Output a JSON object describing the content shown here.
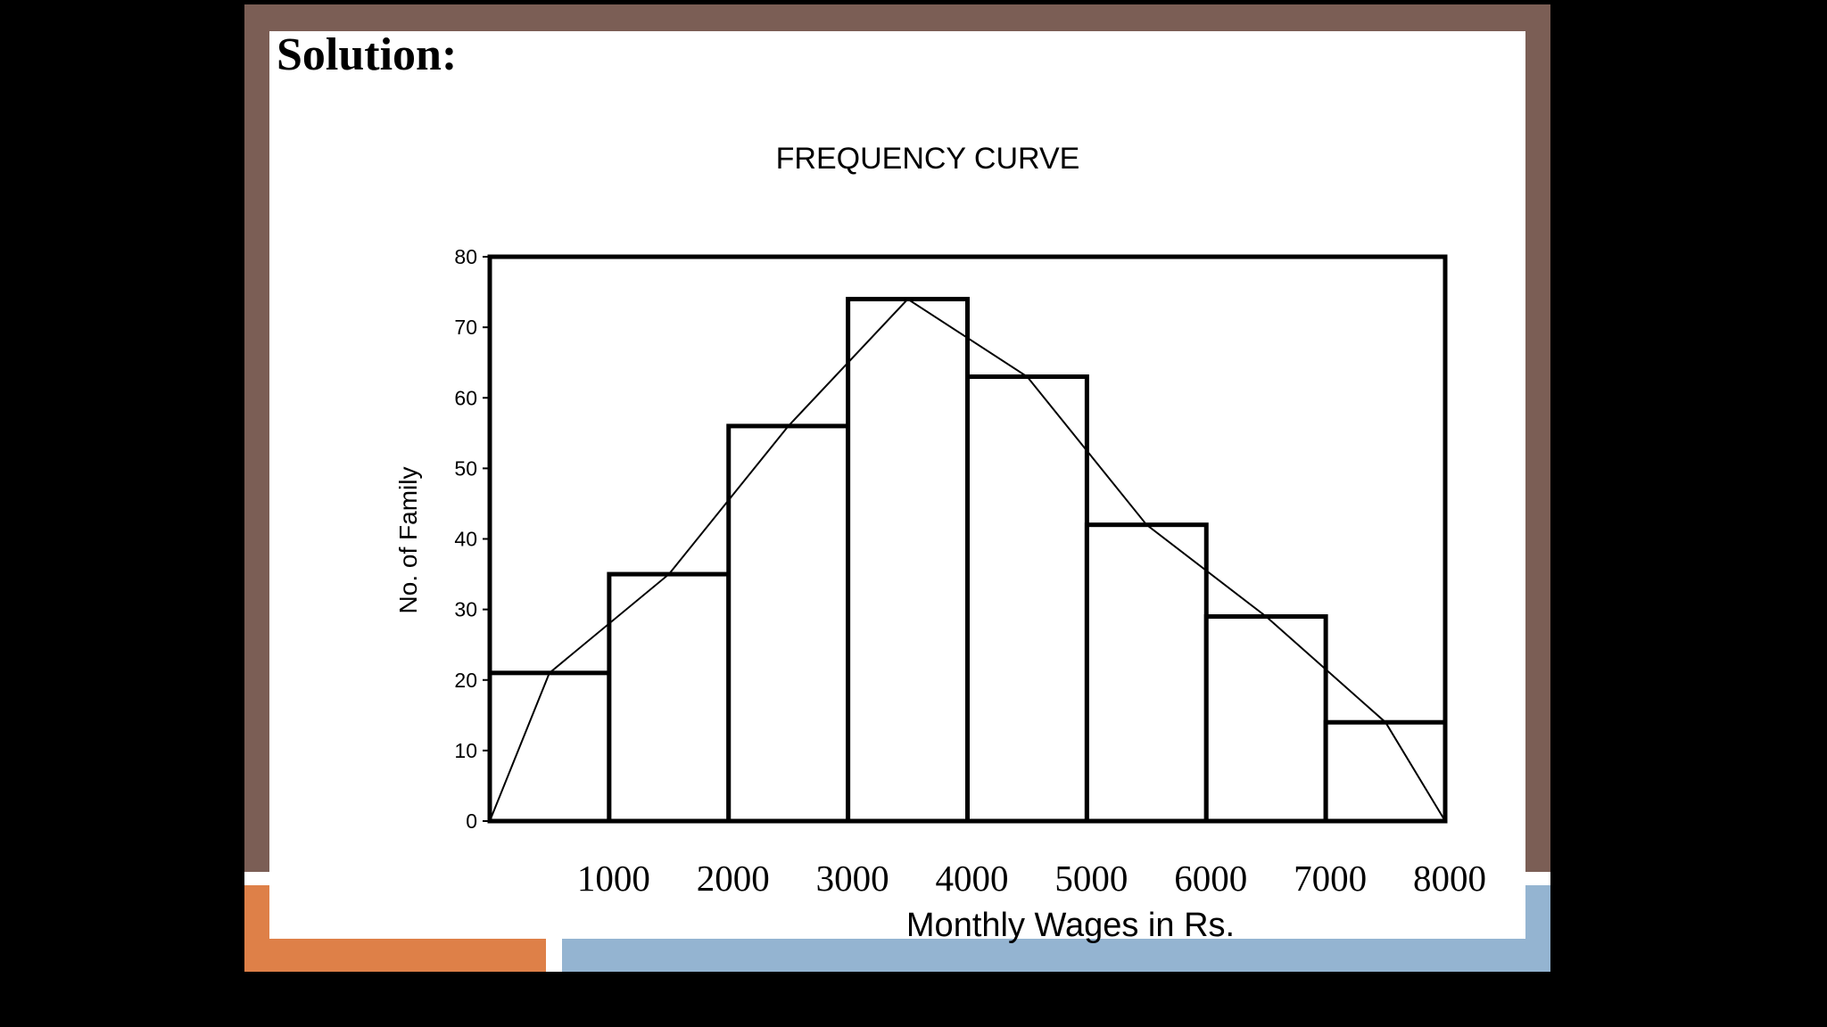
{
  "slide": {
    "heading": "Solution:",
    "colors": {
      "frame": "#7b5e55",
      "accent_orange": "#de8048",
      "accent_blue": "#94b4d1",
      "background": "#000000",
      "panel": "#ffffff"
    }
  },
  "chart_data": {
    "type": "bar",
    "subtype": "histogram-with-frequency-curve",
    "title": "FREQUENCY CURVE",
    "xlabel": "Monthly Wages in Rs.",
    "ylabel": "No. of Family",
    "ylim": [
      0,
      80
    ],
    "yticks": [
      "0",
      "10",
      "20",
      "30",
      "40",
      "50",
      "60",
      "70",
      "80"
    ],
    "xticks": [
      "1000",
      "2000",
      "3000",
      "4000",
      "5000",
      "6000",
      "7000",
      "8000"
    ],
    "bins": [
      {
        "from": 0,
        "to": 1000,
        "value": 21
      },
      {
        "from": 1000,
        "to": 2000,
        "value": 35
      },
      {
        "from": 2000,
        "to": 3000,
        "value": 56
      },
      {
        "from": 3000,
        "to": 4000,
        "value": 74
      },
      {
        "from": 4000,
        "to": 5000,
        "value": 63
      },
      {
        "from": 5000,
        "to": 6000,
        "value": 42
      },
      {
        "from": 6000,
        "to": 7000,
        "value": 29
      },
      {
        "from": 7000,
        "to": 8000,
        "value": 14
      }
    ],
    "curve": {
      "x": [
        0,
        500,
        1500,
        2500,
        3500,
        4500,
        5500,
        6500,
        7500,
        8000
      ],
      "y": [
        0,
        21,
        35,
        56,
        74,
        63,
        42,
        29,
        14,
        0
      ]
    },
    "grid": false,
    "legend": "none"
  }
}
